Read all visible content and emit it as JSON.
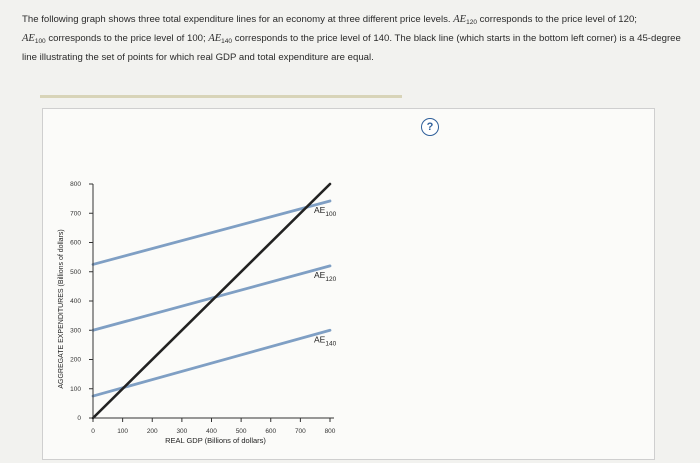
{
  "question": {
    "text_1": "The following graph shows three total expenditure lines for an economy at three different price levels. ",
    "ae120_sym": "AE",
    "ae120_sub": "120",
    "text_2": " corresponds to the price level of 120;",
    "ae100_sym": "AE",
    "ae100_sub": "100",
    "text_3": " corresponds to the price level of 100; ",
    "ae140_sym": "AE",
    "ae140_sub": "140",
    "text_4": " corresponds to the price level of 140. The black line (which starts in the bottom left corner) is a 45-degree line illustrating the set of points for which real GDP and total expenditure are equal."
  },
  "help": {
    "label": "?"
  },
  "colors": {
    "ae_line": "#7f9fc4",
    "deg45_line": "#222222",
    "axis": "#333333"
  },
  "chart_data": {
    "type": "line",
    "xlabel": "REAL GDP (Billions of dollars)",
    "ylabel": "AGGREGATE EXPENDITURES (Billions of dollars)",
    "xlim": [
      0,
      800
    ],
    "ylim": [
      0,
      800
    ],
    "x_ticks": [
      "0",
      "100",
      "200",
      "300",
      "400",
      "500",
      "600",
      "700",
      "800"
    ],
    "y_ticks": [
      "0",
      "100",
      "200",
      "300",
      "400",
      "500",
      "600",
      "700",
      "800"
    ],
    "series": [
      {
        "name": "AE",
        "sub": "100",
        "x": [
          0,
          800
        ],
        "y": [
          525,
          742
        ]
      },
      {
        "name": "AE",
        "sub": "120",
        "x": [
          0,
          800
        ],
        "y": [
          300,
          520
        ]
      },
      {
        "name": "AE",
        "sub": "140",
        "x": [
          0,
          800
        ],
        "y": [
          75,
          300
        ]
      },
      {
        "name": "45-degree line",
        "x": [
          0,
          800
        ],
        "y": [
          0,
          800
        ]
      }
    ]
  }
}
